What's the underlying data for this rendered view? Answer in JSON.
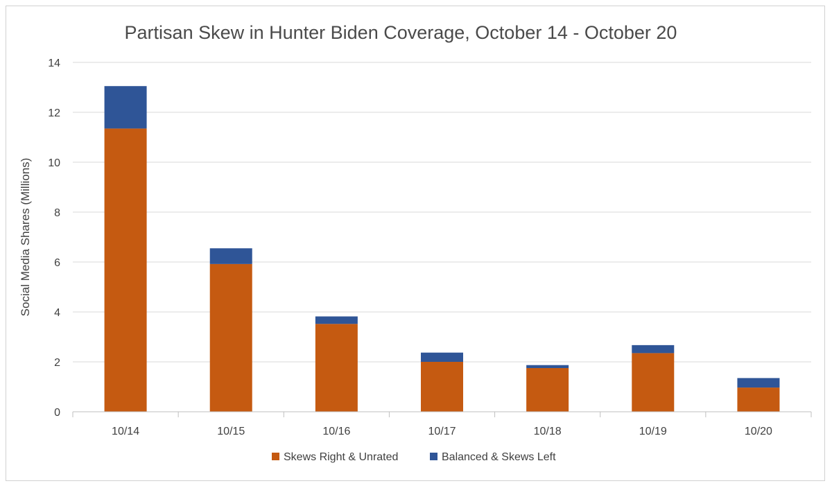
{
  "chart_data": {
    "type": "bar",
    "stacked": true,
    "title": "Partisan Skew in Hunter Biden Coverage, October 14 - October 20",
    "xlabel": "",
    "ylabel": "Social Media Shares (Millions)",
    "ylim": [
      0,
      14
    ],
    "yticks": [
      0,
      2,
      4,
      6,
      8,
      10,
      12,
      14
    ],
    "grid": true,
    "legend_position": "bottom",
    "categories": [
      "10/14",
      "10/15",
      "10/16",
      "10/17",
      "10/18",
      "10/19",
      "10/20"
    ],
    "series": [
      {
        "name": "Skews Right & Unrated",
        "color": "#c55a11",
        "values": [
          11.35,
          5.92,
          3.52,
          2.0,
          1.75,
          2.35,
          0.97
        ]
      },
      {
        "name": "Balanced & Skews Left",
        "color": "#2f5597",
        "values": [
          1.7,
          0.63,
          0.3,
          0.37,
          0.12,
          0.32,
          0.38
        ]
      }
    ]
  }
}
